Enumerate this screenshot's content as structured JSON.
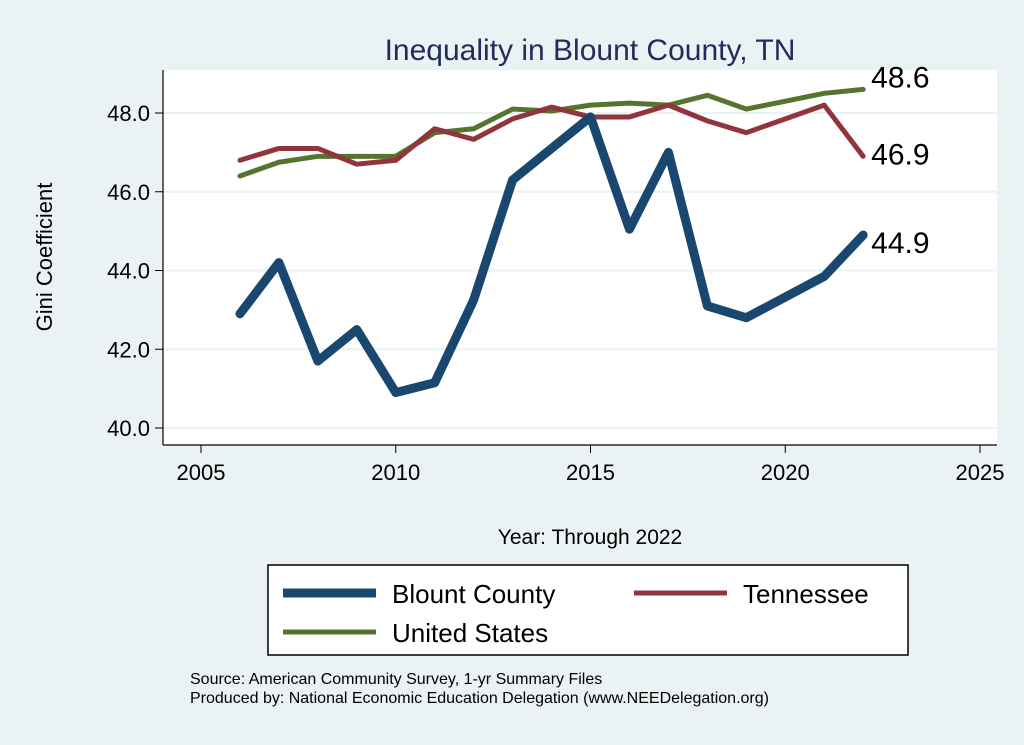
{
  "chart_data": {
    "type": "line",
    "title": "Inequality in Blount County, TN",
    "xlabel": "Year: Through 2022",
    "ylabel": "Gini Coefficient",
    "xlim": [
      2005,
      2025
    ],
    "ylim": [
      40,
      48
    ],
    "xticks": [
      "2005",
      "2010",
      "2015",
      "2020",
      "2025"
    ],
    "yticks": [
      "40.0",
      "42.0",
      "44.0",
      "46.0",
      "48.0"
    ],
    "grid": true,
    "legend_position": "bottom",
    "x": [
      2006,
      2007,
      2008,
      2009,
      2010,
      2011,
      2012,
      2013,
      2014,
      2015,
      2016,
      2017,
      2018,
      2019,
      2020,
      2021,
      2022
    ],
    "series": [
      {
        "name": "Blount County",
        "color": "#1a476f",
        "values": [
          42.9,
          44.2,
          41.7,
          42.5,
          40.9,
          41.15,
          43.25,
          46.3,
          null,
          47.9,
          45.05,
          47.0,
          43.1,
          42.8,
          null,
          43.85,
          44.9
        ],
        "end_label": "44.9"
      },
      {
        "name": "Tennessee",
        "color": "#90353b",
        "values": [
          46.8,
          47.1,
          47.1,
          46.7,
          46.8,
          47.6,
          47.33,
          47.85,
          48.15,
          47.9,
          47.9,
          48.2,
          47.8,
          47.5,
          null,
          48.2,
          46.9
        ],
        "end_label": "46.9"
      },
      {
        "name": "United States",
        "color": "#55752f",
        "values": [
          46.4,
          46.75,
          46.9,
          46.9,
          46.9,
          47.5,
          47.6,
          48.1,
          48.05,
          48.2,
          48.25,
          48.2,
          48.45,
          48.1,
          null,
          48.5,
          48.6
        ],
        "end_label": "48.6"
      }
    ]
  },
  "notes": {
    "source": "Source: American Community Survey, 1-yr Summary Files",
    "produced": "Produced by: National Economic Education Delegation (www.NEEDelegation.org)"
  }
}
